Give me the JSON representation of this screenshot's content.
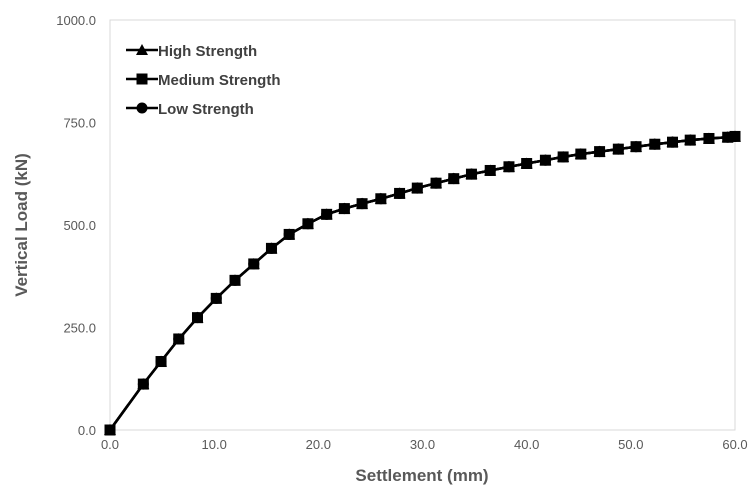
{
  "chart_data": {
    "type": "line",
    "title": "",
    "xlabel": "Settlement (mm)",
    "ylabel": "Vertical Load (kN)",
    "xlim": [
      0,
      60
    ],
    "ylim": [
      0,
      1000
    ],
    "x_ticks": [
      0,
      10,
      20,
      30,
      40,
      50,
      60
    ],
    "y_ticks": [
      0,
      250,
      500,
      750,
      1000
    ],
    "x_tick_labels": [
      "0.0",
      "10.0",
      "20.0",
      "30.0",
      "40.0",
      "50.0",
      "60.0"
    ],
    "y_tick_labels": [
      "0.0",
      "250.0",
      "500.0",
      "750.0",
      "1000.0"
    ],
    "grid": false,
    "legend_position": "top-left",
    "line_color": "#000000",
    "series": [
      {
        "name": "High Strength",
        "marker": "triangle",
        "x": [
          0,
          3.2,
          4.9,
          6.6,
          8.4,
          10.2,
          12.0,
          13.8,
          15.5,
          17.2,
          19.0,
          20.8,
          22.5,
          24.2,
          26.0,
          27.8,
          29.5,
          31.3,
          33.0,
          34.7,
          36.5,
          38.3,
          40.0,
          41.8,
          43.5,
          45.2,
          47.0,
          48.8,
          50.5,
          52.3,
          54.0,
          55.7,
          57.5,
          59.3,
          60.0
        ],
        "y": [
          0,
          112,
          167,
          222,
          274,
          321,
          365,
          405,
          443,
          477,
          503,
          526,
          540,
          552,
          564,
          577,
          590,
          602,
          613,
          624,
          633,
          642,
          650,
          658,
          666,
          673,
          679,
          685,
          691,
          697,
          702,
          707,
          711,
          714,
          716
        ]
      },
      {
        "name": "Medium Strength",
        "marker": "square",
        "x": [
          0,
          3.2,
          4.9,
          6.6,
          8.4,
          10.2,
          12.0,
          13.8,
          15.5,
          17.2,
          19.0,
          20.8,
          22.5,
          24.2,
          26.0,
          27.8,
          29.5,
          31.3,
          33.0,
          34.7,
          36.5,
          38.3,
          40.0,
          41.8,
          43.5,
          45.2,
          47.0,
          48.8,
          50.5,
          52.3,
          54.0,
          55.7,
          57.5,
          59.3,
          60.0
        ],
        "y": [
          0,
          112,
          167,
          222,
          274,
          321,
          365,
          405,
          443,
          477,
          503,
          526,
          540,
          552,
          564,
          577,
          590,
          602,
          613,
          624,
          633,
          642,
          650,
          658,
          666,
          673,
          679,
          685,
          691,
          697,
          702,
          707,
          711,
          714,
          716
        ]
      },
      {
        "name": "Low Strength",
        "marker": "circle",
        "x": [
          0,
          3.2,
          4.9,
          6.6,
          8.4,
          10.2,
          12.0,
          13.8,
          15.5,
          17.2,
          19.0,
          20.8,
          22.5,
          24.2,
          26.0,
          27.8,
          29.5,
          31.3,
          33.0,
          34.7,
          36.5,
          38.3,
          40.0,
          41.8,
          43.5,
          45.2,
          47.0,
          48.8,
          50.5,
          52.3,
          54.0,
          55.7,
          57.5,
          59.3,
          60.0
        ],
        "y": [
          0,
          112,
          167,
          222,
          274,
          321,
          365,
          405,
          443,
          477,
          503,
          526,
          540,
          552,
          564,
          577,
          590,
          602,
          613,
          624,
          633,
          642,
          650,
          658,
          666,
          673,
          679,
          685,
          691,
          697,
          702,
          707,
          711,
          714,
          716
        ]
      }
    ]
  }
}
